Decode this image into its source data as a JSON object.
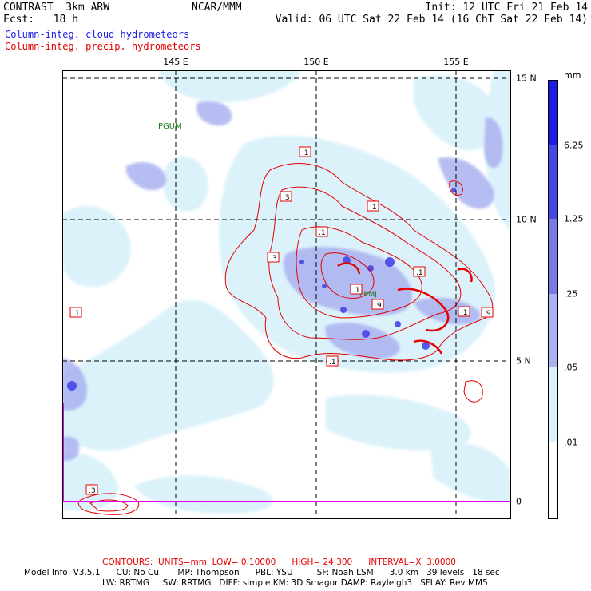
{
  "header": {
    "left_line1": "CONTRAST  3km ARW",
    "center_line1": "NCAR/MMM",
    "right_line1": "Init: 12 UTC Fri 21 Feb 14",
    "left_line2": "Fcst:   18 h",
    "right_line2": "Valid: 06 UTC Sat 22 Feb 14 (16 ChT Sat 22 Feb 14)"
  },
  "fields": {
    "shaded": "Column-integ. cloud hydrometeors",
    "contoured": "Column-integ. precip. hydrometeors"
  },
  "map": {
    "lon_labels": [
      "145 E",
      "150 E",
      "155 E"
    ],
    "lat_labels": [
      "15 N",
      "10 N",
      "5 N",
      "0"
    ],
    "station_labels": [
      "PGUM",
      "PKMJ"
    ],
    "contour_labels": [
      ".1",
      ".3",
      ".1",
      ".3",
      ".1",
      ".9",
      ".1",
      ".9",
      ".1",
      ".1",
      ".3",
      ".1",
      ".1"
    ]
  },
  "colorbar": {
    "unit": "mm",
    "levels": [
      "6.25",
      "1.25",
      ".25",
      ".05",
      ".01"
    ],
    "colors": [
      "#1c1ce6",
      "#4646e6",
      "#7a7ae6",
      "#aab2f0",
      "#dcf2fa",
      "#ffffff"
    ]
  },
  "footer": {
    "contours": "CONTOURS:  UNITS=mm  LOW= 0.10000      HIGH= 24.300      INTERVAL=X  3.0000",
    "model_line1": "Model Info: V3.5.1      CU: No Cu       MP: Thompson      PBL: YSU         SF: Noah LSM      3.0 km   39 levels   18 sec",
    "model_line2": "LW: RRTMG     SW: RRTMG   DIFF: simple KM: 3D Smagor DAMP: Rayleigh3   SFLAY: Rev MM5"
  },
  "colors": {
    "cloud_text": "#1c1ce6",
    "precip_text": "#e60000",
    "station_text": "#1a7a1a",
    "boundary": "#e600e6"
  }
}
